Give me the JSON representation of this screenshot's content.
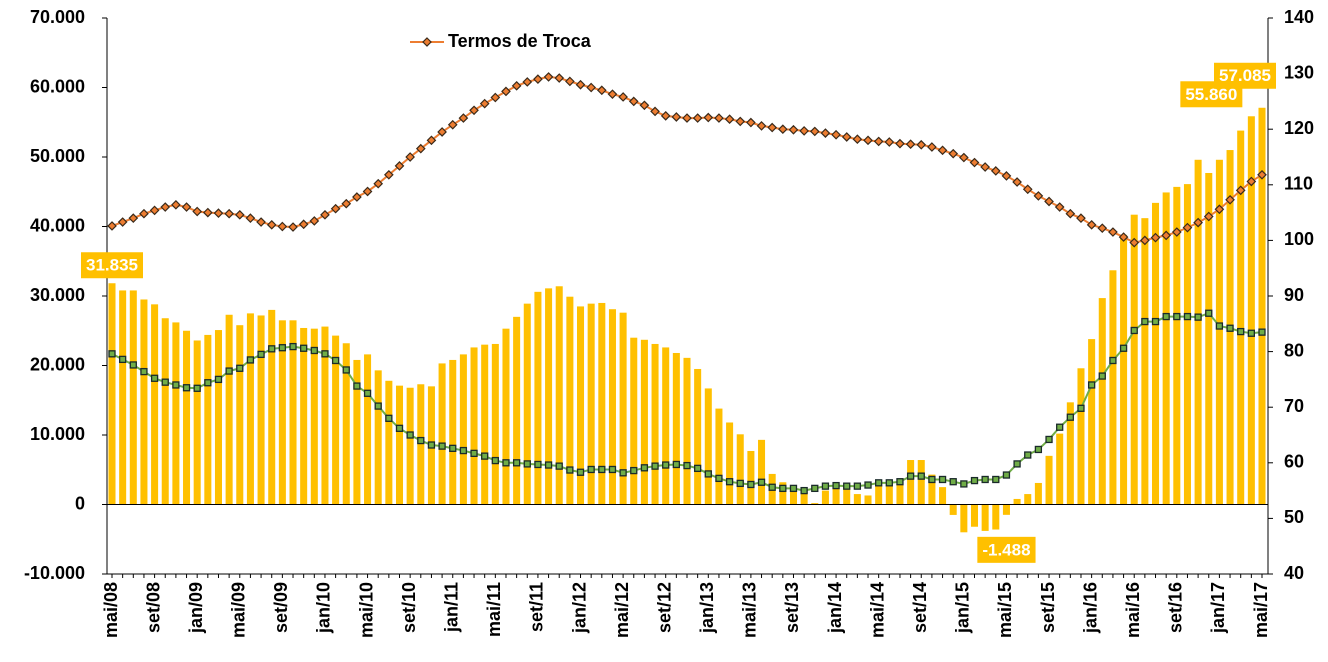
{
  "chart_data": {
    "type": "bar_line",
    "categories": [
      "mai/08",
      null,
      null,
      null,
      "set/08",
      null,
      null,
      null,
      "jan/09",
      null,
      null,
      null,
      "mai/09",
      null,
      null,
      null,
      "set/09",
      null,
      null,
      null,
      "jan/10",
      null,
      null,
      null,
      "mai/10",
      null,
      null,
      null,
      "set/10",
      null,
      null,
      null,
      "jan/11",
      null,
      null,
      null,
      "mai/11",
      null,
      null,
      null,
      "set/11",
      null,
      null,
      null,
      "jan/12",
      null,
      null,
      null,
      "mai/12",
      null,
      null,
      null,
      "set/12",
      null,
      null,
      null,
      "jan/13",
      null,
      null,
      null,
      "mai/13",
      null,
      null,
      null,
      "set/13",
      null,
      null,
      null,
      "jan/14",
      null,
      null,
      null,
      "mai/14",
      null,
      null,
      null,
      "set/14",
      null,
      null,
      null,
      "jan/15",
      null,
      null,
      null,
      "mai/15",
      null,
      null,
      null,
      "set/15",
      null,
      null,
      null,
      "jan/16",
      null,
      null,
      null,
      "mai/16",
      null,
      null,
      null,
      "set/16",
      null,
      null,
      null,
      "jan/17",
      null,
      null,
      null,
      "mai/17"
    ],
    "series": [
      {
        "type": "bar",
        "color": "#ffc000",
        "axis": "y",
        "values": [
          31835,
          30800,
          30800,
          29500,
          28800,
          26800,
          26200,
          25000,
          23600,
          24400,
          25100,
          27300,
          25800,
          27500,
          27200,
          28000,
          26500,
          26500,
          25400,
          25300,
          25600,
          24300,
          23200,
          20800,
          21600,
          19300,
          17800,
          17100,
          16800,
          17300,
          17000,
          20300,
          20800,
          21600,
          22600,
          23000,
          23100,
          25300,
          27000,
          28900,
          30600,
          31100,
          31400,
          29900,
          28500,
          28900,
          29000,
          28100,
          27600,
          24000,
          23700,
          23100,
          22600,
          21800,
          21100,
          19500,
          16700,
          13800,
          11800,
          10100,
          7700,
          9300,
          4400,
          3200,
          2600,
          1800,
          200,
          2000,
          2400,
          2600,
          1500,
          1300,
          2800,
          2800,
          3000,
          6400,
          6400,
          4300,
          2500,
          -1500,
          -4000,
          -3200,
          -3800,
          -3600,
          -1488,
          800,
          1500,
          3100,
          7000,
          10200,
          14700,
          19600,
          23800,
          29700,
          33700,
          38800,
          41700,
          41200,
          43400,
          44900,
          45700,
          46100,
          49600,
          47700,
          49600,
          51000,
          53800,
          55860,
          57085
        ],
        "value_labels": [
          "31.835",
          null,
          null,
          null,
          null,
          null,
          null,
          null,
          null,
          null,
          null,
          null,
          null,
          null,
          null,
          null,
          null,
          null,
          null,
          null,
          null,
          null,
          null,
          null,
          null,
          null,
          null,
          null,
          null,
          null,
          null,
          null,
          null,
          null,
          null,
          null,
          null,
          null,
          null,
          null,
          null,
          null,
          null,
          null,
          null,
          null,
          null,
          null,
          null,
          null,
          null,
          null,
          null,
          null,
          null,
          null,
          null,
          null,
          null,
          null,
          null,
          null,
          null,
          null,
          null,
          null,
          null,
          null,
          null,
          null,
          null,
          null,
          null,
          null,
          null,
          null,
          null,
          null,
          null,
          null,
          null,
          null,
          null,
          null,
          "-1.488",
          null,
          null,
          null,
          null,
          null,
          null,
          null,
          null,
          null,
          null,
          null,
          null,
          null,
          null,
          null,
          null,
          null,
          null,
          null,
          null,
          null,
          null,
          "55.860",
          "57.085"
        ]
      },
      {
        "type": "line",
        "name": "Termos de Troca",
        "color": "#ed7d31",
        "axis": "y2",
        "values": [
          102.6,
          103.3,
          104.0,
          104.8,
          105.4,
          106.0,
          106.4,
          106.0,
          105.2,
          105.0,
          104.9,
          104.8,
          104.6,
          104.0,
          103.3,
          102.8,
          102.5,
          102.4,
          102.9,
          103.5,
          104.6,
          105.7,
          106.6,
          107.8,
          108.8,
          110.2,
          111.8,
          113.4,
          115.0,
          116.5,
          118.0,
          119.5,
          120.8,
          122.0,
          123.4,
          124.6,
          125.7,
          126.8,
          127.8,
          128.5,
          129.0,
          129.4,
          129.2,
          128.6,
          128.0,
          127.5,
          127.0,
          126.3,
          125.8,
          125.0,
          124.3,
          123.2,
          122.4,
          122.2,
          122.0,
          122.0,
          122.1,
          122.0,
          121.8,
          121.4,
          121.2,
          120.6,
          120.3,
          120.0,
          119.9,
          119.7,
          119.6,
          119.3,
          119.0,
          118.6,
          118.2,
          118.0,
          117.8,
          117.7,
          117.4,
          117.3,
          117.2,
          116.8,
          116.2,
          115.6,
          114.9,
          114.0,
          113.2,
          112.5,
          111.6,
          110.5,
          109.2,
          108.0,
          107.0,
          106.0,
          104.8,
          104.0,
          102.8,
          102.2,
          101.5,
          100.6,
          99.6,
          100.0,
          100.5,
          100.9,
          101.5,
          102.3,
          103.2,
          104.3,
          105.6,
          107.3,
          109.0,
          110.6,
          111.8
        ]
      },
      {
        "type": "line",
        "color": "#70ad47",
        "axis": "y2",
        "values": [
          79.6,
          78.6,
          77.6,
          76.4,
          75.2,
          74.5,
          74.0,
          73.5,
          73.4,
          74.4,
          75.0,
          76.5,
          77.0,
          78.5,
          79.5,
          80.5,
          80.7,
          80.9,
          80.6,
          80.2,
          79.6,
          78.4,
          76.7,
          73.8,
          72.5,
          70.2,
          68.0,
          66.2,
          65.0,
          64.0,
          63.2,
          63.0,
          62.6,
          62.2,
          61.7,
          61.2,
          60.4,
          60.0,
          60.0,
          59.8,
          59.7,
          59.6,
          59.4,
          58.7,
          58.3,
          58.8,
          58.8,
          58.8,
          58.2,
          58.6,
          59.1,
          59.4,
          59.6,
          59.7,
          59.5,
          59.0,
          58.0,
          57.2,
          56.6,
          56.3,
          56.1,
          56.5,
          55.6,
          55.4,
          55.4,
          55.0,
          55.4,
          55.8,
          55.9,
          55.8,
          55.8,
          56.0,
          56.4,
          56.4,
          56.6,
          57.6,
          57.6,
          57.0,
          57.0,
          56.6,
          56.2,
          56.8,
          57.0,
          57.0,
          57.8,
          59.8,
          61.4,
          62.4,
          64.2,
          66.4,
          68.2,
          69.8,
          74.0,
          75.6,
          78.4,
          80.6,
          83.8,
          85.4,
          85.4,
          86.3,
          86.3,
          86.3,
          86.2,
          86.9,
          84.6,
          84.2,
          83.6,
          83.3,
          83.5
        ]
      }
    ],
    "ylim": [
      -10000,
      70000
    ],
    "yticks": [
      {
        "value": -10000,
        "label": "-10.000"
      },
      0,
      {
        "value": 10000,
        "label": "10.000"
      },
      {
        "value": 20000,
        "label": "20.000"
      },
      {
        "value": 30000,
        "label": "30.000"
      },
      {
        "value": 40000,
        "label": "40.000"
      },
      {
        "value": 50000,
        "label": "50.000"
      },
      {
        "value": 60000,
        "label": "60.000"
      },
      {
        "value": 70000,
        "label": "70.000"
      }
    ],
    "y2lim": [
      40,
      140
    ],
    "y2ticks": [
      40,
      50,
      60,
      70,
      80,
      90,
      100,
      110,
      120,
      130,
      140
    ]
  }
}
